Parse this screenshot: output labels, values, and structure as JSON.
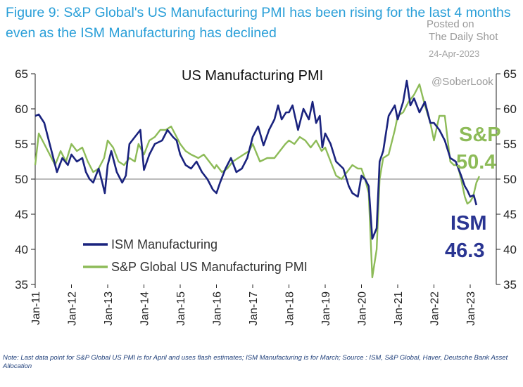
{
  "figure_title": "Figure 9: S&P Global's US Manufacturing PMI has been rising for the last 4 months even as the ISM Manufacturing has declined",
  "watermark": {
    "posted_on": "Posted on",
    "source": "The Daily Shot",
    "date": "24-Apr-2023",
    "handle": "@SoberLook"
  },
  "footnote": "Note: Last data point for S&P Global US PMI is for April and uses flash estimates; ISM Manufacturing is for March; Source : ISM, S&P Global, Haver, Deutsche Bank Asset Allocation",
  "colors": {
    "ism": "#1a237e",
    "sp": "#8dbb58",
    "title": "#2a9fd8"
  },
  "chart_data": {
    "type": "line",
    "title": "US Manufacturing PMI",
    "ylim": [
      35,
      65
    ],
    "yticks": [
      35,
      40,
      45,
      50,
      55,
      60,
      65
    ],
    "reference_line": 50,
    "x_tick_labels": [
      "Jan-11",
      "Jan-12",
      "Jan-13",
      "Jan-14",
      "Jan-15",
      "Jan-16",
      "Jan-17",
      "Jan-18",
      "Jan-19",
      "Jan-20",
      "Jan-21",
      "Jan-22",
      "Jan-23"
    ],
    "x_start_year": 2011,
    "series": [
      {
        "name": "ISM Manufacturing",
        "color": "#1a237e",
        "points": [
          [
            2011.0,
            59.0
          ],
          [
            2011.1,
            59.2
          ],
          [
            2011.25,
            58.0
          ],
          [
            2011.4,
            55.0
          ],
          [
            2011.5,
            53.0
          ],
          [
            2011.6,
            51.0
          ],
          [
            2011.75,
            53.0
          ],
          [
            2011.9,
            52.0
          ],
          [
            2012.0,
            53.5
          ],
          [
            2012.15,
            52.5
          ],
          [
            2012.3,
            53.0
          ],
          [
            2012.4,
            51.0
          ],
          [
            2012.5,
            50.0
          ],
          [
            2012.6,
            49.5
          ],
          [
            2012.75,
            51.5
          ],
          [
            2012.85,
            49.5
          ],
          [
            2012.92,
            48.0
          ],
          [
            2013.0,
            52.0
          ],
          [
            2013.1,
            54.0
          ],
          [
            2013.25,
            51.0
          ],
          [
            2013.4,
            49.5
          ],
          [
            2013.5,
            50.5
          ],
          [
            2013.6,
            55.0
          ],
          [
            2013.75,
            56.0
          ],
          [
            2013.9,
            57.0
          ],
          [
            2014.0,
            51.3
          ],
          [
            2014.15,
            53.5
          ],
          [
            2014.3,
            55.0
          ],
          [
            2014.5,
            55.5
          ],
          [
            2014.65,
            57.0
          ],
          [
            2014.8,
            56.0
          ],
          [
            2014.9,
            55.5
          ],
          [
            2015.0,
            53.5
          ],
          [
            2015.15,
            52.0
          ],
          [
            2015.3,
            51.5
          ],
          [
            2015.45,
            52.5
          ],
          [
            2015.6,
            51.0
          ],
          [
            2015.75,
            50.0
          ],
          [
            2015.9,
            48.5
          ],
          [
            2016.0,
            48.0
          ],
          [
            2016.1,
            49.5
          ],
          [
            2016.25,
            51.5
          ],
          [
            2016.4,
            53.0
          ],
          [
            2016.55,
            51.0
          ],
          [
            2016.7,
            51.5
          ],
          [
            2016.85,
            53.0
          ],
          [
            2017.0,
            56.0
          ],
          [
            2017.15,
            57.5
          ],
          [
            2017.3,
            54.8
          ],
          [
            2017.45,
            57.0
          ],
          [
            2017.6,
            58.5
          ],
          [
            2017.7,
            60.5
          ],
          [
            2017.8,
            58.5
          ],
          [
            2017.92,
            59.5
          ],
          [
            2018.0,
            59.5
          ],
          [
            2018.1,
            60.5
          ],
          [
            2018.25,
            57.0
          ],
          [
            2018.4,
            60.0
          ],
          [
            2018.55,
            58.5
          ],
          [
            2018.65,
            61.0
          ],
          [
            2018.75,
            58.0
          ],
          [
            2018.85,
            59.0
          ],
          [
            2018.92,
            54.5
          ],
          [
            2019.0,
            56.5
          ],
          [
            2019.15,
            55.0
          ],
          [
            2019.3,
            52.5
          ],
          [
            2019.5,
            51.5
          ],
          [
            2019.65,
            49.0
          ],
          [
            2019.75,
            48.0
          ],
          [
            2019.9,
            47.5
          ],
          [
            2020.0,
            50.5
          ],
          [
            2020.1,
            50.0
          ],
          [
            2020.2,
            49.0
          ],
          [
            2020.3,
            41.5
          ],
          [
            2020.42,
            43.0
          ],
          [
            2020.5,
            52.5
          ],
          [
            2020.6,
            54.0
          ],
          [
            2020.75,
            59.0
          ],
          [
            2020.92,
            60.5
          ],
          [
            2021.0,
            58.5
          ],
          [
            2021.15,
            61.0
          ],
          [
            2021.25,
            64.0
          ],
          [
            2021.35,
            60.5
          ],
          [
            2021.45,
            61.5
          ],
          [
            2021.6,
            59.5
          ],
          [
            2021.75,
            61.0
          ],
          [
            2021.9,
            58.0
          ],
          [
            2022.0,
            58.0
          ],
          [
            2022.15,
            57.0
          ],
          [
            2022.3,
            55.5
          ],
          [
            2022.45,
            53.0
          ],
          [
            2022.6,
            52.5
          ],
          [
            2022.75,
            50.5
          ],
          [
            2022.85,
            49.0
          ],
          [
            2022.92,
            48.4
          ],
          [
            2023.0,
            47.5
          ],
          [
            2023.1,
            47.7
          ],
          [
            2023.17,
            46.3
          ]
        ]
      },
      {
        "name": "S&P Global US Manufacturing PMI",
        "color": "#8dbb58",
        "points": [
          [
            2011.0,
            52.0
          ],
          [
            2011.1,
            56.5
          ],
          [
            2011.25,
            55.0
          ],
          [
            2011.4,
            53.5
          ],
          [
            2011.55,
            52.0
          ],
          [
            2011.7,
            54.0
          ],
          [
            2011.85,
            52.5
          ],
          [
            2012.0,
            55.0
          ],
          [
            2012.15,
            54.0
          ],
          [
            2012.3,
            54.5
          ],
          [
            2012.45,
            52.5
          ],
          [
            2012.6,
            51.0
          ],
          [
            2012.75,
            51.5
          ],
          [
            2012.9,
            53.0
          ],
          [
            2013.0,
            55.5
          ],
          [
            2013.15,
            54.5
          ],
          [
            2013.3,
            52.5
          ],
          [
            2013.45,
            52.0
          ],
          [
            2013.6,
            53.0
          ],
          [
            2013.75,
            52.5
          ],
          [
            2013.85,
            55.0
          ],
          [
            2014.0,
            53.5
          ],
          [
            2014.15,
            55.5
          ],
          [
            2014.3,
            56.0
          ],
          [
            2014.45,
            57.0
          ],
          [
            2014.6,
            57.0
          ],
          [
            2014.75,
            57.5
          ],
          [
            2014.9,
            56.0
          ],
          [
            2015.0,
            55.0
          ],
          [
            2015.15,
            54.0
          ],
          [
            2015.3,
            53.5
          ],
          [
            2015.5,
            53.0
          ],
          [
            2015.65,
            53.5
          ],
          [
            2015.8,
            52.5
          ],
          [
            2015.95,
            51.5
          ],
          [
            2016.0,
            52.0
          ],
          [
            2016.15,
            51.0
          ],
          [
            2016.3,
            51.5
          ],
          [
            2016.45,
            52.5
          ],
          [
            2016.6,
            53.0
          ],
          [
            2016.75,
            53.5
          ],
          [
            2016.9,
            54.0
          ],
          [
            2017.0,
            55.0
          ],
          [
            2017.2,
            52.5
          ],
          [
            2017.4,
            53.0
          ],
          [
            2017.6,
            53.0
          ],
          [
            2017.75,
            54.0
          ],
          [
            2017.9,
            55.0
          ],
          [
            2018.0,
            55.5
          ],
          [
            2018.15,
            55.0
          ],
          [
            2018.3,
            56.0
          ],
          [
            2018.45,
            55.5
          ],
          [
            2018.6,
            54.5
          ],
          [
            2018.75,
            55.5
          ],
          [
            2018.9,
            54.0
          ],
          [
            2019.0,
            54.5
          ],
          [
            2019.15,
            52.5
          ],
          [
            2019.3,
            50.5
          ],
          [
            2019.45,
            50.0
          ],
          [
            2019.6,
            51.0
          ],
          [
            2019.75,
            52.0
          ],
          [
            2019.9,
            51.5
          ],
          [
            2020.0,
            51.5
          ],
          [
            2020.1,
            50.0
          ],
          [
            2020.2,
            48.0
          ],
          [
            2020.3,
            36.0
          ],
          [
            2020.42,
            40.0
          ],
          [
            2020.5,
            50.0
          ],
          [
            2020.6,
            53.0
          ],
          [
            2020.75,
            53.5
          ],
          [
            2020.92,
            57.0
          ],
          [
            2021.0,
            59.0
          ],
          [
            2021.15,
            59.5
          ],
          [
            2021.3,
            61.0
          ],
          [
            2021.45,
            62.0
          ],
          [
            2021.6,
            63.5
          ],
          [
            2021.75,
            60.5
          ],
          [
            2021.9,
            58.0
          ],
          [
            2022.0,
            55.5
          ],
          [
            2022.15,
            59.0
          ],
          [
            2022.3,
            59.0
          ],
          [
            2022.45,
            52.5
          ],
          [
            2022.55,
            52.0
          ],
          [
            2022.65,
            52.0
          ],
          [
            2022.75,
            50.0
          ],
          [
            2022.85,
            47.5
          ],
          [
            2022.92,
            46.5
          ],
          [
            2023.0,
            46.8
          ],
          [
            2023.08,
            47.5
          ],
          [
            2023.17,
            49.5
          ],
          [
            2023.25,
            50.4
          ]
        ]
      }
    ],
    "annotations": [
      {
        "series": "S&P",
        "label": "S&P",
        "value": "50.4"
      },
      {
        "series": "ISM",
        "label": "ISM",
        "value": "46.3"
      }
    ]
  }
}
